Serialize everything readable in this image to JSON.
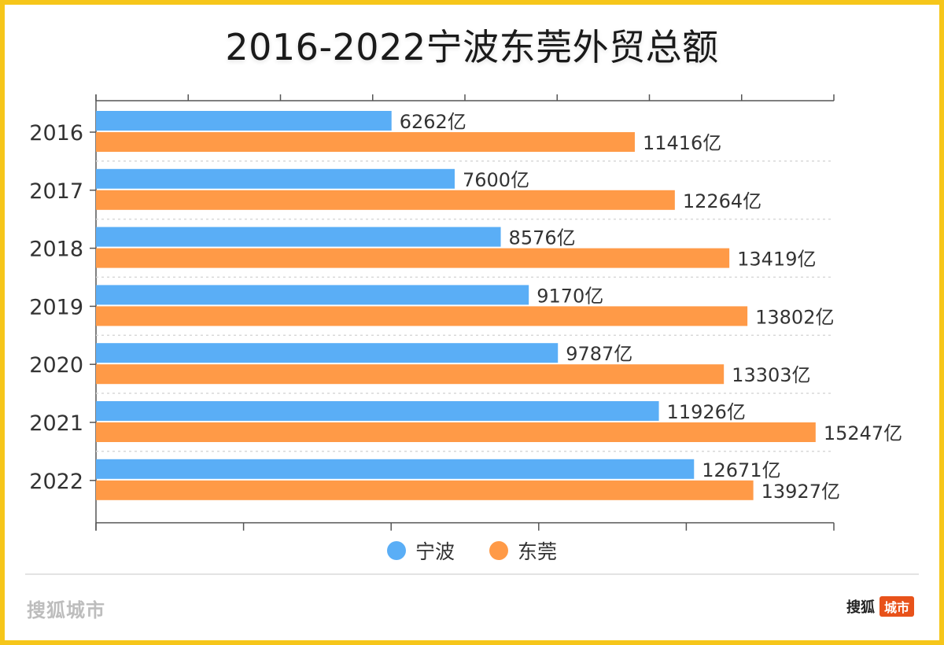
{
  "title": "2016-2022宁波东莞外贸总额",
  "colors": {
    "ningbo": "#5AAEF6",
    "dongguan": "#FF9A47"
  },
  "legend": [
    {
      "label": "宁波",
      "color": "#5AAEF6"
    },
    {
      "label": "东莞",
      "color": "#FF9A47"
    }
  ],
  "chart_data": {
    "type": "bar",
    "orientation": "horizontal",
    "title": "2016-2022宁波东莞外贸总额",
    "categories": [
      "2016",
      "2017",
      "2018",
      "2019",
      "2020",
      "2021",
      "2022"
    ],
    "series": [
      {
        "name": "宁波",
        "values": [
          6262,
          7600,
          8576,
          9170,
          9787,
          11926,
          12671
        ],
        "labels": [
          "6262亿",
          "7600亿",
          "8576亿",
          "9170亿",
          "9787亿",
          "11926亿",
          "12671亿"
        ]
      },
      {
        "name": "东莞",
        "values": [
          11416,
          12264,
          13419,
          13802,
          13303,
          15247,
          13927
        ],
        "labels": [
          "11416亿",
          "12264亿",
          "13419亿",
          "13802亿",
          "13303亿",
          "15247亿",
          "13927亿"
        ]
      }
    ],
    "xlim": [
      0,
      16000
    ],
    "grid": true,
    "legend_position": "bottom"
  },
  "footer": {
    "brand_left": "搜狐城市",
    "brand_right_text": "搜狐",
    "brand_right_badge": "城市"
  }
}
